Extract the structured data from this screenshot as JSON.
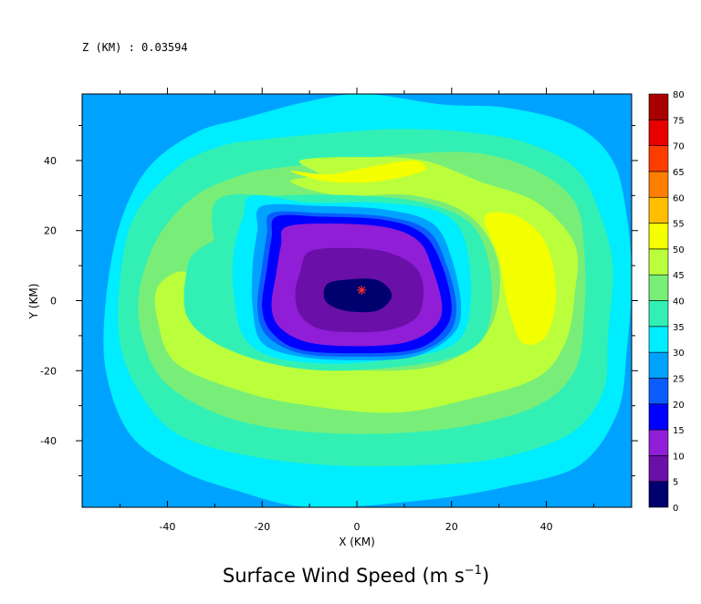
{
  "header": {
    "level_label": "Z (KM) : 0.03594"
  },
  "chart_data": {
    "type": "heatmap",
    "title": "Surface Wind Speed (m s⁻¹)",
    "title_main": "Surface Wind Speed (m s",
    "title_exp": "−1",
    "title_close": ")",
    "xlabel": "X (KM)",
    "ylabel": "Y (KM)",
    "xlim": [
      -58,
      58
    ],
    "ylim": [
      -59,
      59
    ],
    "x_ticks": [
      -40,
      -20,
      0,
      20,
      40
    ],
    "y_ticks": [
      -40,
      -20,
      0,
      20,
      40
    ],
    "x_minor_step": 10,
    "y_minor_step": 10,
    "center_marker": {
      "x": 1,
      "y": 3,
      "color": "#ff3030"
    },
    "colorbar": {
      "levels": [
        0,
        5,
        10,
        15,
        20,
        25,
        30,
        35,
        40,
        45,
        50,
        55,
        60,
        65,
        70,
        75,
        80
      ],
      "colors": [
        "#00006e",
        "#6a0fa8",
        "#8f1ed6",
        "#0000ff",
        "#0a5cff",
        "#00a2ff",
        "#00ecff",
        "#32f0b4",
        "#78ee78",
        "#bbff3c",
        "#f4ff00",
        "#ffbf00",
        "#ff7d00",
        "#ff3c00",
        "#e60000",
        "#a80000"
      ]
    },
    "contours": [
      {
        "level_index": 6,
        "points": [
          [
            -24,
            52
          ],
          [
            -10,
            57
          ],
          [
            2,
            59
          ],
          [
            18,
            56
          ],
          [
            32,
            55
          ],
          [
            46,
            50
          ],
          [
            54,
            40
          ],
          [
            57,
            24
          ],
          [
            58,
            6
          ],
          [
            57,
            -14
          ],
          [
            55,
            -32
          ],
          [
            47,
            -47
          ],
          [
            32,
            -53
          ],
          [
            14,
            -57
          ],
          [
            -10,
            -59
          ],
          [
            -26,
            -54
          ],
          [
            -38,
            -48
          ],
          [
            -48,
            -38
          ],
          [
            -53,
            -20
          ],
          [
            -53,
            0
          ],
          [
            -50,
            22
          ],
          [
            -44,
            38
          ],
          [
            -34,
            48
          ]
        ]
      },
      {
        "level_index": 7,
        "points": [
          [
            -20,
            46
          ],
          [
            -4,
            48
          ],
          [
            10,
            49
          ],
          [
            24,
            48
          ],
          [
            36,
            45
          ],
          [
            46,
            38
          ],
          [
            51,
            26
          ],
          [
            54,
            10
          ],
          [
            53,
            -10
          ],
          [
            52,
            -26
          ],
          [
            45,
            -38
          ],
          [
            30,
            -45
          ],
          [
            14,
            -47
          ],
          [
            -6,
            -47
          ],
          [
            -24,
            -44
          ],
          [
            -38,
            -38
          ],
          [
            -46,
            -26
          ],
          [
            -50,
            -12
          ],
          [
            -50,
            6
          ],
          [
            -47,
            24
          ],
          [
            -38,
            38
          ],
          [
            -29,
            44
          ]
        ]
      },
      {
        "level_index": 8,
        "points": [
          [
            -16,
            38
          ],
          [
            -2,
            40
          ],
          [
            12,
            42
          ],
          [
            26,
            42
          ],
          [
            38,
            37
          ],
          [
            46,
            28
          ],
          [
            48,
            14
          ],
          [
            48,
            -4
          ],
          [
            46,
            -20
          ],
          [
            38,
            -30
          ],
          [
            22,
            -36
          ],
          [
            4,
            -38
          ],
          [
            -14,
            -37
          ],
          [
            -28,
            -33
          ],
          [
            -40,
            -24
          ],
          [
            -45,
            -12
          ],
          [
            -46,
            2
          ],
          [
            -42,
            18
          ],
          [
            -34,
            30
          ],
          [
            -24,
            36
          ]
        ]
      },
      {
        "level_index": 9,
        "points": [
          [
            -14,
            34
          ],
          [
            -8,
            36
          ],
          [
            -12,
            40
          ],
          [
            0,
            41
          ],
          [
            14,
            40
          ],
          [
            26,
            34
          ],
          [
            38,
            28
          ],
          [
            46,
            16
          ],
          [
            46,
            2
          ],
          [
            44,
            -12
          ],
          [
            38,
            -22
          ],
          [
            24,
            -28
          ],
          [
            8,
            -32
          ],
          [
            -10,
            -30
          ],
          [
            -24,
            -26
          ],
          [
            -38,
            -18
          ],
          [
            -42,
            -6
          ],
          [
            -42,
            4
          ],
          [
            -36,
            8
          ],
          [
            -32,
            -4
          ],
          [
            -26,
            -8
          ],
          [
            -20,
            -14
          ],
          [
            -10,
            -18
          ],
          [
            4,
            -20
          ],
          [
            18,
            -18
          ],
          [
            28,
            -8
          ],
          [
            30,
            10
          ],
          [
            24,
            24
          ],
          [
            12,
            30
          ],
          [
            -4,
            30
          ]
        ]
      },
      {
        "level_index": 10,
        "points": [
          [
            -14,
            37
          ],
          [
            -6,
            36
          ],
          [
            2,
            38
          ],
          [
            12,
            40
          ],
          [
            14,
            37
          ],
          [
            4,
            34
          ],
          [
            -6,
            34
          ]
        ]
      },
      {
        "level_index": 10,
        "points": [
          [
            27,
            24
          ],
          [
            34,
            24
          ],
          [
            40,
            16
          ],
          [
            42,
            2
          ],
          [
            40,
            -10
          ],
          [
            35,
            -12
          ],
          [
            32,
            -2
          ],
          [
            30,
            12
          ]
        ]
      },
      {
        "level_index": 7,
        "points": [
          [
            -30,
            28
          ],
          [
            -16,
            30
          ],
          [
            0,
            30
          ],
          [
            14,
            28
          ],
          [
            24,
            22
          ],
          [
            28,
            10
          ],
          [
            28,
            -6
          ],
          [
            24,
            -14
          ],
          [
            14,
            -18
          ],
          [
            -4,
            -20
          ],
          [
            -18,
            -18
          ],
          [
            -30,
            -12
          ],
          [
            -36,
            -4
          ],
          [
            -36,
            8
          ],
          [
            -34,
            14
          ],
          [
            -28,
            18
          ],
          [
            -26,
            14
          ],
          [
            -28,
            6
          ]
        ]
      },
      {
        "level_index": 6,
        "points": [
          [
            -22,
            30
          ],
          [
            -10,
            28
          ],
          [
            4,
            28
          ],
          [
            16,
            26
          ],
          [
            22,
            20
          ],
          [
            24,
            6
          ],
          [
            23,
            -8
          ],
          [
            18,
            -14
          ],
          [
            6,
            -17
          ],
          [
            -6,
            -18
          ],
          [
            -18,
            -16
          ],
          [
            -24,
            -10
          ],
          [
            -26,
            2
          ],
          [
            -26,
            14
          ],
          [
            -24,
            24
          ]
        ]
      },
      {
        "level_index": 5,
        "points": [
          [
            -20,
            27
          ],
          [
            -8,
            27
          ],
          [
            6,
            26
          ],
          [
            16,
            22
          ],
          [
            20,
            12
          ],
          [
            22,
            -2
          ],
          [
            20,
            -10
          ],
          [
            12,
            -16
          ],
          [
            0,
            -17
          ],
          [
            -12,
            -16
          ],
          [
            -20,
            -12
          ],
          [
            -22,
            -2
          ],
          [
            -22,
            10
          ],
          [
            -21,
            20
          ]
        ]
      },
      {
        "level_index": 4,
        "points": [
          [
            -18,
            25
          ],
          [
            -8,
            25
          ],
          [
            6,
            24
          ],
          [
            15,
            20
          ],
          [
            19,
            10
          ],
          [
            21,
            -2
          ],
          [
            19,
            -10
          ],
          [
            12,
            -15
          ],
          [
            0,
            -16
          ],
          [
            -12,
            -15
          ],
          [
            -19,
            -10
          ],
          [
            -21,
            -2
          ],
          [
            -20,
            10
          ],
          [
            -19,
            19
          ]
        ]
      },
      {
        "level_index": 3,
        "points": [
          [
            -17,
            24
          ],
          [
            -8,
            24
          ],
          [
            6,
            23
          ],
          [
            14,
            19
          ],
          [
            18,
            10
          ],
          [
            20,
            -2
          ],
          [
            18,
            -9
          ],
          [
            12,
            -14
          ],
          [
            0,
            -15
          ],
          [
            -12,
            -14
          ],
          [
            -18,
            -9
          ],
          [
            -20,
            -2
          ],
          [
            -19,
            9
          ],
          [
            -18,
            18
          ]
        ]
      },
      {
        "level_index": 2,
        "points": [
          [
            -15,
            21
          ],
          [
            -6,
            22
          ],
          [
            6,
            21
          ],
          [
            13,
            17
          ],
          [
            16,
            9
          ],
          [
            18,
            -2
          ],
          [
            16,
            -8
          ],
          [
            10,
            -12
          ],
          [
            0,
            -13
          ],
          [
            -10,
            -12
          ],
          [
            -16,
            -8
          ],
          [
            -18,
            -2
          ],
          [
            -17,
            8
          ],
          [
            -16,
            16
          ]
        ]
      },
      {
        "level_index": 1,
        "points": [
          [
            -10,
            14
          ],
          [
            -2,
            15
          ],
          [
            6,
            14
          ],
          [
            12,
            10
          ],
          [
            14,
            4
          ],
          [
            13,
            -4
          ],
          [
            8,
            -8
          ],
          [
            0,
            -9
          ],
          [
            -8,
            -8
          ],
          [
            -12,
            -4
          ],
          [
            -13,
            2
          ],
          [
            -12,
            8
          ]
        ]
      },
      {
        "level_index": 0,
        "points": [
          [
            -6,
            5
          ],
          [
            -2,
            6
          ],
          [
            4,
            6
          ],
          [
            7,
            3
          ],
          [
            7,
            0
          ],
          [
            4,
            -3
          ],
          [
            -2,
            -3
          ],
          [
            -6,
            -1
          ],
          [
            -7,
            2
          ]
        ]
      }
    ]
  }
}
